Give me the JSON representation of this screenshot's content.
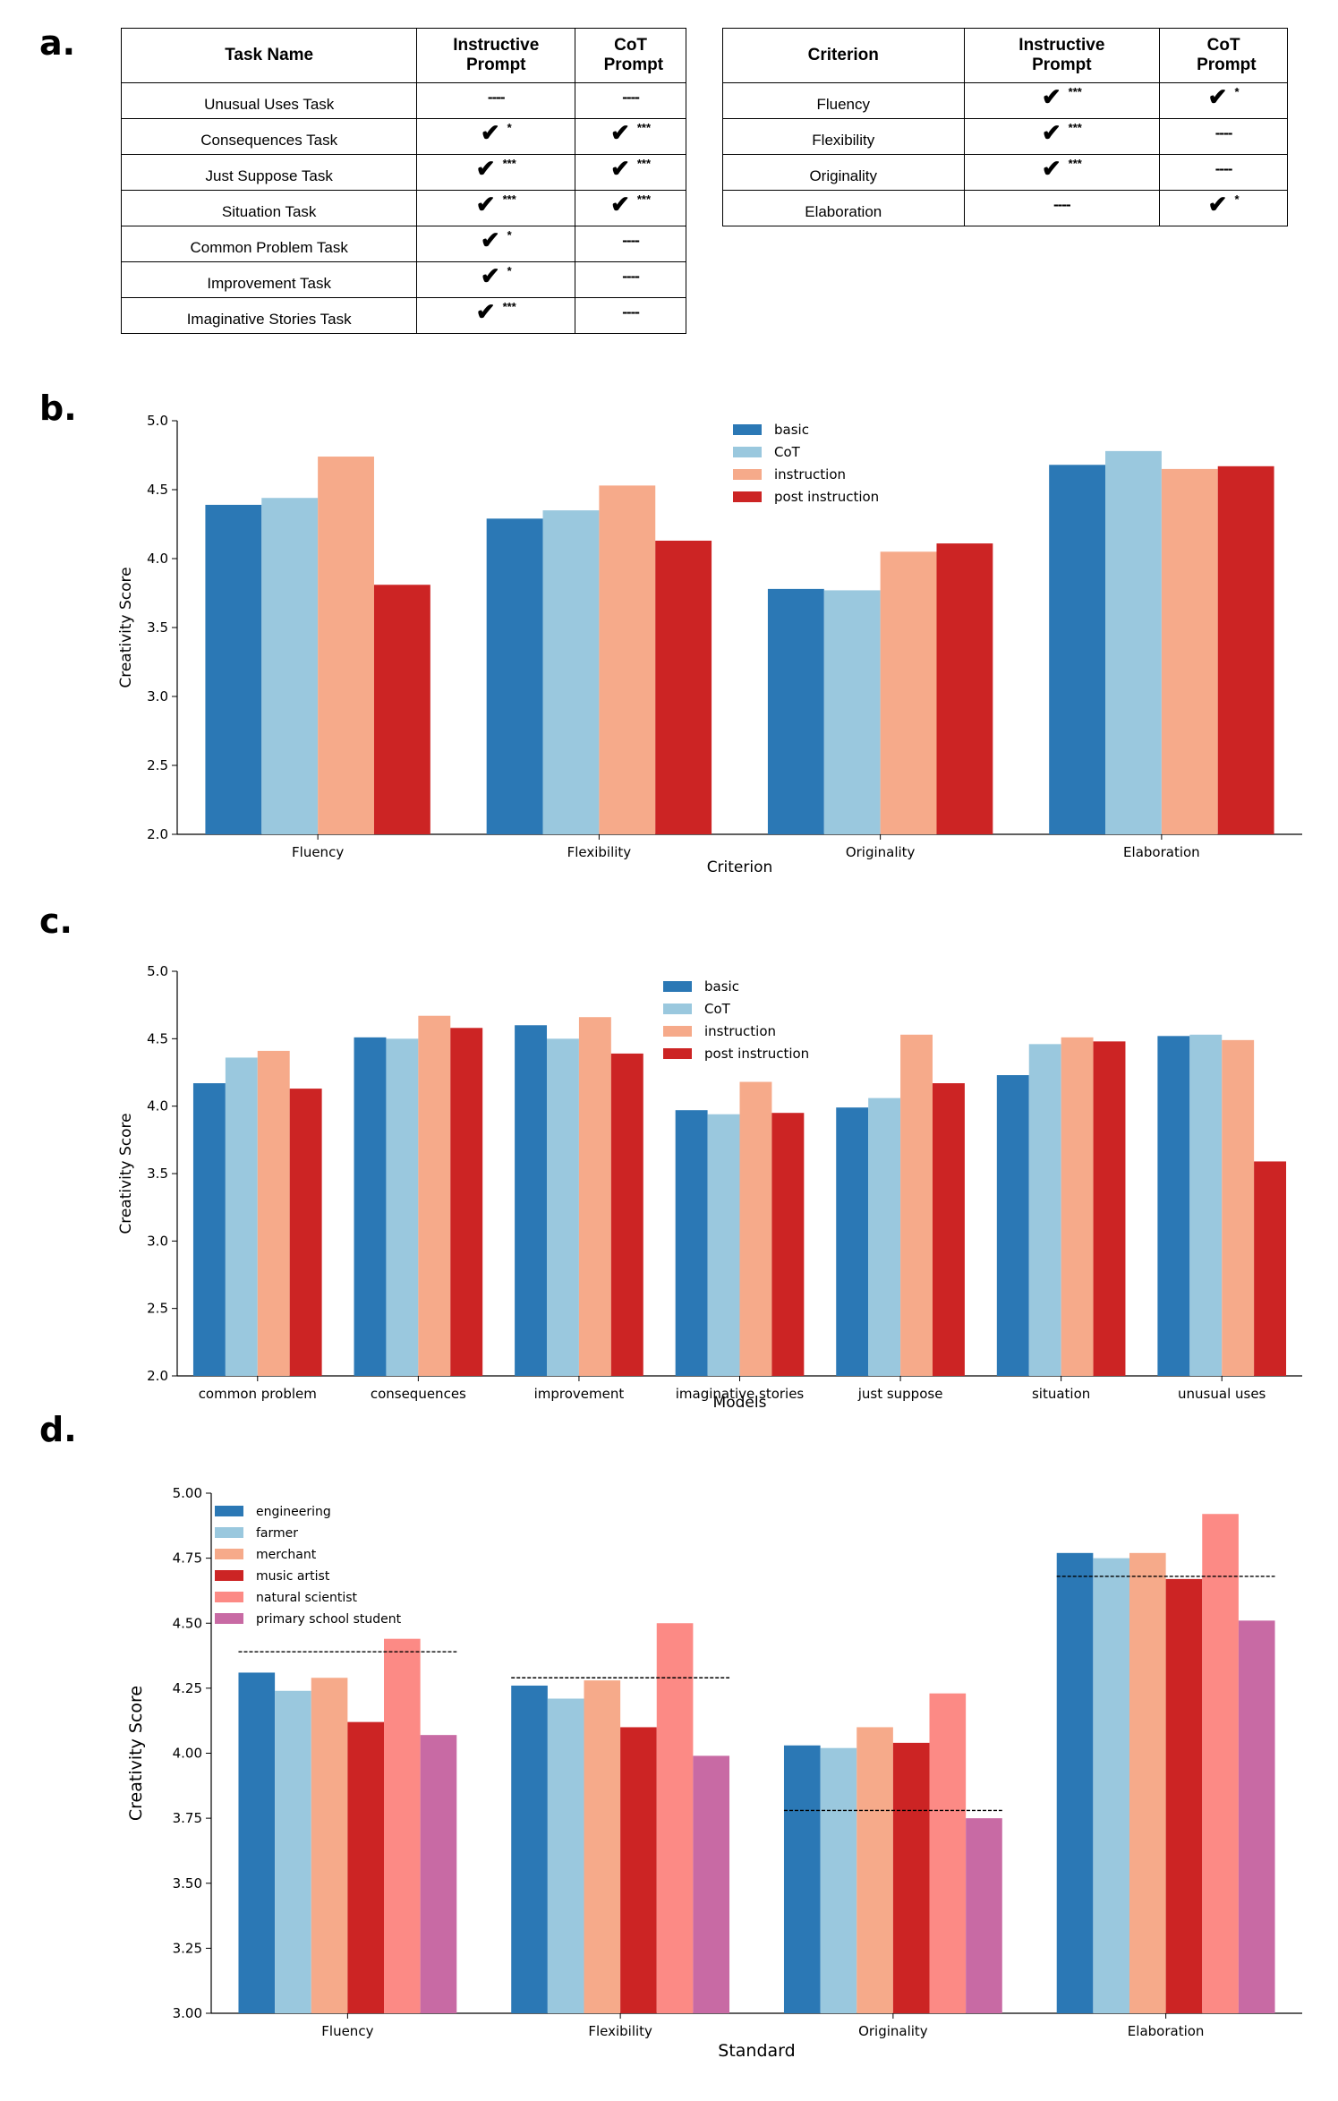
{
  "panels": {
    "a": "a.",
    "b": "b.",
    "c": "c.",
    "d": "d."
  },
  "table_tasks": {
    "headers": [
      "Task Name",
      "Instructive Prompt",
      "CoT Prompt"
    ],
    "rows": [
      {
        "name": "Unusual Uses Task",
        "instructive": "----",
        "cot": "----"
      },
      {
        "name": "Consequences Task",
        "instructive": "✔ *",
        "cot": "✔ ***"
      },
      {
        "name": "Just Suppose Task",
        "instructive": "✔ ***",
        "cot": "✔ ***"
      },
      {
        "name": "Situation Task",
        "instructive": "✔ ***",
        "cot": "✔ ***"
      },
      {
        "name": "Common Problem Task",
        "instructive": "✔ *",
        "cot": "----"
      },
      {
        "name": "Improvement Task",
        "instructive": "✔ *",
        "cot": "----"
      },
      {
        "name": "Imaginative Stories Task",
        "instructive": "✔ ***",
        "cot": "----"
      }
    ]
  },
  "table_criteria": {
    "headers": [
      "Criterion",
      "Instructive Prompt",
      "CoT Prompt"
    ],
    "rows": [
      {
        "name": "Fluency",
        "instructive": "✔ ***",
        "cot": "✔ *"
      },
      {
        "name": "Flexibility",
        "instructive": "✔ ***",
        "cot": "----"
      },
      {
        "name": "Originality",
        "instructive": "✔ ***",
        "cot": "----"
      },
      {
        "name": "Elaboration",
        "instructive": "----",
        "cot": "✔ *"
      }
    ]
  },
  "chart_data": [
    {
      "id": "b",
      "type": "bar",
      "title": "",
      "xlabel": "Criterion",
      "ylabel": "Creativity Score",
      "ylim": [
        2.0,
        5.0
      ],
      "yticks": [
        "2.0",
        "2.5",
        "3.0",
        "3.5",
        "4.0",
        "4.5",
        "5.0"
      ],
      "legend_position": "top-center",
      "categories": [
        "Fluency",
        "Flexibility",
        "Originality",
        "Elaboration"
      ],
      "series": [
        {
          "name": "basic",
          "color": "#2b78b5",
          "values": [
            4.39,
            4.29,
            3.78,
            4.68
          ]
        },
        {
          "name": "CoT",
          "color": "#9ac8de",
          "values": [
            4.44,
            4.35,
            3.77,
            4.78
          ]
        },
        {
          "name": "instruction",
          "color": "#f6aa8a",
          "values": [
            4.74,
            4.53,
            4.05,
            4.65
          ]
        },
        {
          "name": "post instruction",
          "color": "#cc2424",
          "values": [
            3.81,
            4.13,
            4.11,
            4.67
          ]
        }
      ]
    },
    {
      "id": "c",
      "type": "bar",
      "title": "",
      "xlabel": "Models",
      "ylabel": "Creativity Score",
      "ylim": [
        2.0,
        5.0
      ],
      "yticks": [
        "2.0",
        "2.5",
        "3.0",
        "3.5",
        "4.0",
        "4.5",
        "5.0"
      ],
      "legend_position": "top-center",
      "categories": [
        "common problem",
        "consequences",
        "improvement",
        "imaginative stories",
        "just suppose",
        "situation",
        "unusual uses"
      ],
      "series": [
        {
          "name": "basic",
          "color": "#2b78b5",
          "values": [
            4.17,
            4.51,
            4.6,
            3.97,
            3.99,
            4.23,
            4.52
          ]
        },
        {
          "name": "CoT",
          "color": "#9ac8de",
          "values": [
            4.36,
            4.5,
            4.5,
            3.94,
            4.06,
            4.46,
            4.53
          ]
        },
        {
          "name": "instruction",
          "color": "#f6aa8a",
          "values": [
            4.41,
            4.67,
            4.66,
            4.18,
            4.53,
            4.51,
            4.49
          ]
        },
        {
          "name": "post instruction",
          "color": "#cc2424",
          "values": [
            4.13,
            4.58,
            4.39,
            3.95,
            4.17,
            4.48,
            3.59
          ]
        }
      ]
    },
    {
      "id": "d",
      "type": "bar",
      "title": "",
      "xlabel": "Standard",
      "ylabel": "Creativity Score",
      "ylim": [
        3.0,
        5.0
      ],
      "yticks": [
        "3.00",
        "3.25",
        "3.50",
        "3.75",
        "4.00",
        "4.25",
        "4.50",
        "4.75",
        "5.00"
      ],
      "legend_position": "top-left",
      "categories": [
        "Fluency",
        "Flexibility",
        "Originality",
        "Elaboration"
      ],
      "series": [
        {
          "name": "engineering",
          "color": "#2b78b5",
          "values": [
            4.31,
            4.26,
            4.03,
            4.77
          ]
        },
        {
          "name": "farmer",
          "color": "#9ac8de",
          "values": [
            4.24,
            4.21,
            4.02,
            4.75
          ]
        },
        {
          "name": "merchant",
          "color": "#f6aa8a",
          "values": [
            4.29,
            4.28,
            4.1,
            4.77
          ]
        },
        {
          "name": "music artist",
          "color": "#cc2424",
          "values": [
            4.12,
            4.1,
            4.04,
            4.67
          ]
        },
        {
          "name": "natural scientist",
          "color": "#fc8a85",
          "values": [
            4.44,
            4.5,
            4.23,
            4.92
          ]
        },
        {
          "name": "primary school student",
          "color": "#c86aa4",
          "values": [
            4.07,
            3.99,
            3.75,
            4.51
          ]
        }
      ],
      "reference_lines": [
        4.39,
        4.29,
        3.78,
        4.68
      ]
    }
  ]
}
